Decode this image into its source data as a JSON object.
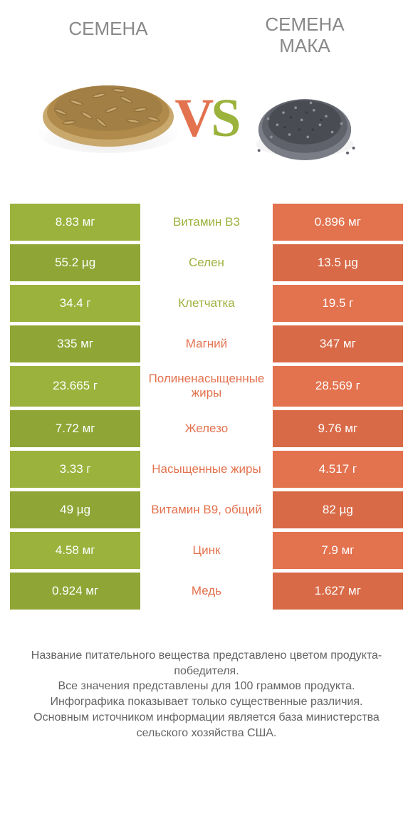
{
  "colors": {
    "green": "#9bb23c",
    "green_dark": "#8fa636",
    "orange": "#e3724e",
    "orange_dark": "#d96a47",
    "text": "#555555",
    "footer_text": "#636363",
    "title_text": "#888888",
    "background": "#ffffff"
  },
  "typography": {
    "title_fontsize": 26,
    "vs_fontsize": 76,
    "cell_fontsize": 17,
    "footer_fontsize": 16
  },
  "header": {
    "left_title": "Семена",
    "right_title_line1": "Семена",
    "right_title_line2": "мака",
    "vs_v": "V",
    "vs_s": "S"
  },
  "illustrations": {
    "left": {
      "type": "cumin-seeds-pile",
      "colors": [
        "#b08a4a",
        "#8e6e3a",
        "#c9a86d",
        "#a27f45"
      ]
    },
    "right": {
      "type": "poppy-seeds-pile",
      "colors": [
        "#5f626b",
        "#4a4c54",
        "#7a7d86",
        "#8d8f97"
      ]
    }
  },
  "comparison": {
    "rows": [
      {
        "left": "8.83 мг",
        "mid": "Витамин B3",
        "right": "0.896 мг",
        "winner": "left"
      },
      {
        "left": "55.2 µg",
        "mid": "Селен",
        "right": "13.5 µg",
        "winner": "left"
      },
      {
        "left": "34.4 г",
        "mid": "Клетчатка",
        "right": "19.5 г",
        "winner": "left"
      },
      {
        "left": "335 мг",
        "mid": "Магний",
        "right": "347 мг",
        "winner": "right"
      },
      {
        "left": "23.665 г",
        "mid": "Полиненасыщенные жиры",
        "right": "28.569 г",
        "winner": "right"
      },
      {
        "left": "7.72 мг",
        "mid": "Железо",
        "right": "9.76 мг",
        "winner": "right"
      },
      {
        "left": "3.33 г",
        "mid": "Насыщенные жиры",
        "right": "4.517 г",
        "winner": "right"
      },
      {
        "left": "49 µg",
        "mid": "Витамин B9, общий",
        "right": "82 µg",
        "winner": "right"
      },
      {
        "left": "4.58 мг",
        "mid": "Цинк",
        "right": "7.9 мг",
        "winner": "right"
      },
      {
        "left": "0.924 мг",
        "mid": "Медь",
        "right": "1.627 мг",
        "winner": "right"
      }
    ]
  },
  "footer": {
    "line1": "Название питательного вещества представлено цветом продукта-победителя.",
    "line2": "Все значения представлены для 100 граммов продукта.",
    "line3": "Инфографика показывает только существенные различия.",
    "line4": "Основным источником информации является база министерства сельского хозяйства США."
  }
}
